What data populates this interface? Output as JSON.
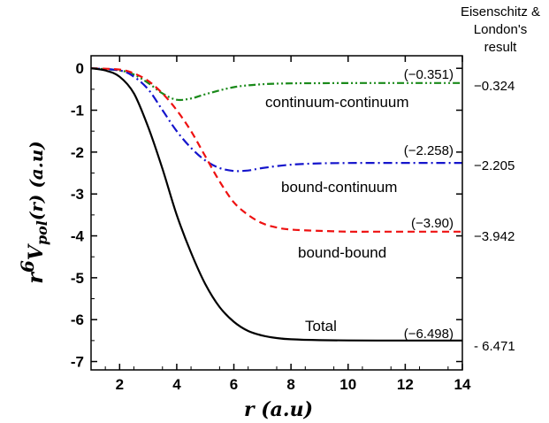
{
  "chart_data": {
    "type": "line",
    "xlabel": {
      "main": "r (a.u)"
    },
    "ylabel": {
      "base": "r",
      "sup": "6",
      "mid": "V",
      "sub": "pol",
      "tail": "(r) (a.u)"
    },
    "xlim": [
      1,
      14
    ],
    "ylim": [
      -7.2,
      0.3
    ],
    "x_ticks": [
      2,
      4,
      6,
      8,
      10,
      12,
      14
    ],
    "y_ticks": [
      0,
      -1,
      -2,
      -3,
      -4,
      -5,
      -6,
      -7
    ],
    "grid": false,
    "series": [
      {
        "name": "continuum-continuum",
        "color": "#1a8a1a",
        "style": "dash-dot-dot",
        "x": [
          1,
          2,
          2.5,
          3,
          3.5,
          4,
          4.5,
          5,
          6,
          7,
          8,
          9,
          10,
          11,
          12,
          13,
          14
        ],
        "y": [
          0,
          -0.05,
          -0.15,
          -0.35,
          -0.6,
          -0.75,
          -0.72,
          -0.62,
          -0.45,
          -0.38,
          -0.36,
          -0.355,
          -0.352,
          -0.351,
          -0.351,
          -0.351,
          -0.351
        ],
        "end_label": "(−0.351)"
      },
      {
        "name": "bound-continuum",
        "color": "#1515cc",
        "style": "dash-dot",
        "x": [
          1,
          2,
          2.5,
          3,
          3.5,
          4,
          4.5,
          5,
          5.5,
          6,
          6.5,
          7,
          8,
          9,
          10,
          11,
          12,
          13,
          14
        ],
        "y": [
          0,
          -0.05,
          -0.2,
          -0.5,
          -1.0,
          -1.5,
          -1.9,
          -2.2,
          -2.38,
          -2.45,
          -2.44,
          -2.38,
          -2.3,
          -2.27,
          -2.26,
          -2.258,
          -2.258,
          -2.258,
          -2.258
        ],
        "end_label": "(−2.258)"
      },
      {
        "name": "bound-bound",
        "color": "#ee1111",
        "style": "dash",
        "x": [
          1,
          2,
          2.5,
          3,
          3.5,
          4,
          4.5,
          5,
          5.5,
          6,
          6.5,
          7,
          7.5,
          8,
          9,
          10,
          11,
          12,
          13,
          14
        ],
        "y": [
          0,
          -0.03,
          -0.12,
          -0.3,
          -0.6,
          -1.0,
          -1.5,
          -2.1,
          -2.7,
          -3.2,
          -3.5,
          -3.7,
          -3.8,
          -3.85,
          -3.88,
          -3.9,
          -3.9,
          -3.9,
          -3.9,
          -3.9
        ],
        "end_label": "(−3.90)"
      },
      {
        "name": "Total",
        "color": "#000000",
        "style": "solid",
        "x": [
          1,
          1.5,
          2,
          2.5,
          3,
          3.5,
          4,
          4.5,
          5,
          5.5,
          6,
          6.5,
          7,
          7.5,
          8,
          9,
          10,
          11,
          12,
          13,
          14
        ],
        "y": [
          0,
          -0.05,
          -0.2,
          -0.6,
          -1.4,
          -2.4,
          -3.5,
          -4.4,
          -5.15,
          -5.7,
          -6.05,
          -6.27,
          -6.38,
          -6.44,
          -6.47,
          -6.49,
          -6.497,
          -6.498,
          -6.498,
          -6.498,
          -6.498
        ],
        "end_label": "(−6.498)"
      }
    ],
    "reference": {
      "title": [
        "Eisenschitz &",
        "London's",
        "result"
      ],
      "values": [
        {
          "y": -0.351,
          "label": "−0.324"
        },
        {
          "y": -2.258,
          "label": "−2.205"
        },
        {
          "y": -3.9,
          "label": "−3.942"
        },
        {
          "y": -6.498,
          "label": "- 6.471"
        }
      ]
    }
  }
}
